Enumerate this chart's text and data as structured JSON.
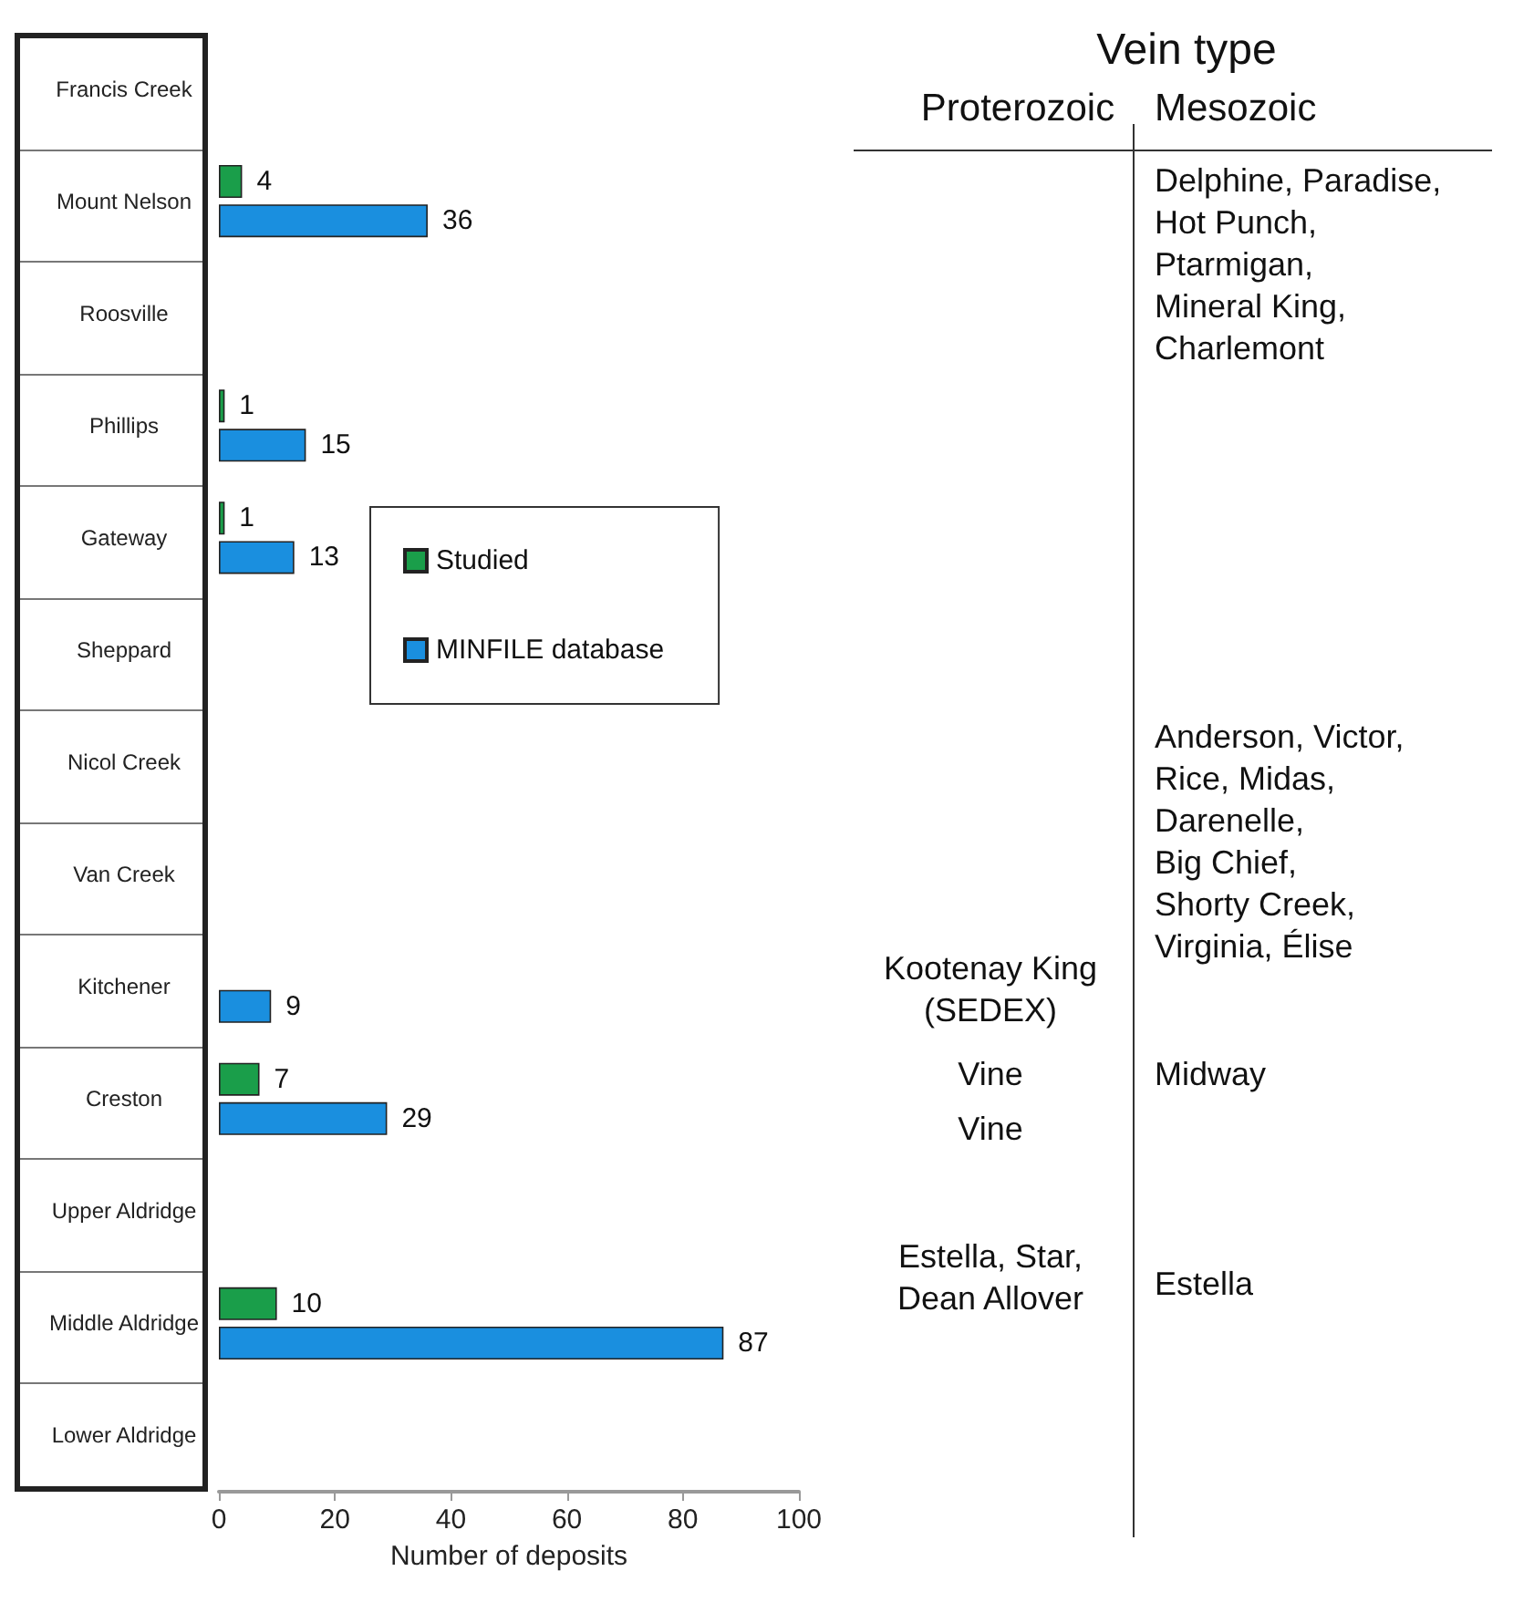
{
  "chart_data": [
    {
      "type": "bar",
      "orientation": "horizontal",
      "xlabel": "Number of deposits",
      "categories": [
        "Francis Creek",
        "Mount Nelson",
        "Roosville",
        "Phillips",
        "Gateway",
        "Sheppard",
        "Nicol Creek",
        "Van Creek",
        "Kitchener",
        "Creston",
        "Upper Aldridge",
        "Middle Aldridge",
        "Lower Aldridge"
      ],
      "series": [
        {
          "name": "Studied",
          "color": "#1a9e4a",
          "values": [
            null,
            4,
            null,
            1,
            1,
            null,
            null,
            null,
            null,
            7,
            null,
            10,
            null
          ]
        },
        {
          "name": "MINFILE database",
          "color": "#1a8fdf",
          "values": [
            null,
            36,
            null,
            15,
            13,
            null,
            null,
            null,
            9,
            29,
            null,
            87,
            null
          ]
        }
      ],
      "xlim": [
        0,
        100
      ],
      "xticks": [
        0,
        20,
        40,
        60,
        80,
        100
      ],
      "data_labels": true,
      "legend": "right",
      "grid": false
    },
    {
      "type": "other",
      "title": "Vein type",
      "categories": [
        "Proterozoic",
        "Mesozoic"
      ],
      "annotations": [
        "Delphine, Paradise,\nHot Punch,\nPtarmigan,\nMineral King,\nCharlemont",
        "Anderson, Victor,\nRice, Midas,\nDarenelle,\nBig Chief,\nShorty Creek,\nVirginia, Élise",
        "Kootenay King\n(SEDEX)",
        "Vine",
        "Midway",
        "Vine",
        "Estella, Star,\nDean Allover",
        "Estella"
      ]
    }
  ]
}
